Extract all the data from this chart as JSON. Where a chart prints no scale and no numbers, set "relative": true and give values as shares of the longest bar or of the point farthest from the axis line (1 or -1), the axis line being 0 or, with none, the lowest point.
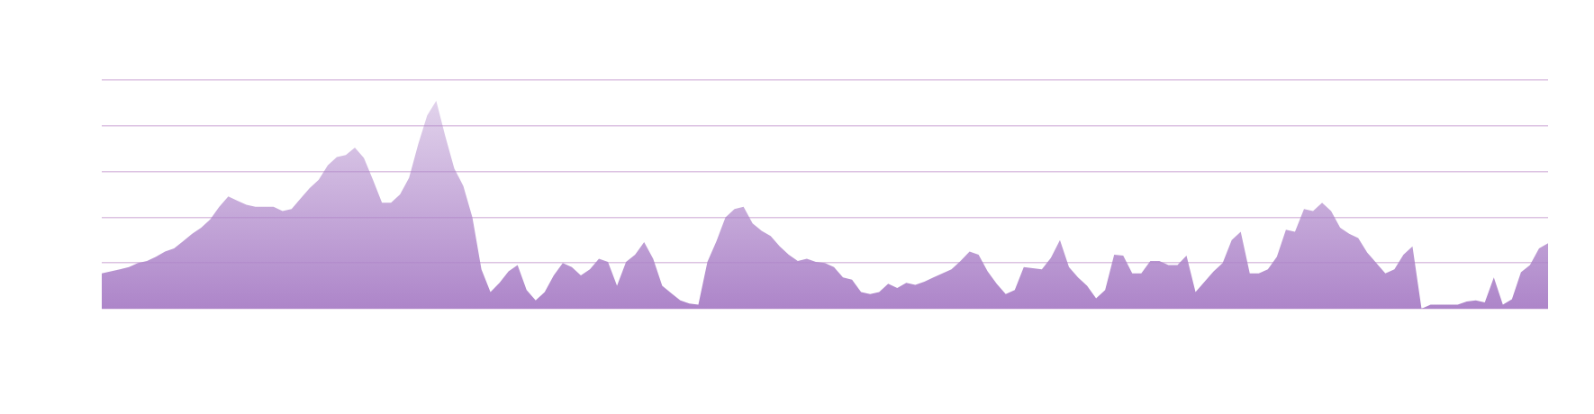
{
  "chart_data": {
    "type": "area",
    "relative": true,
    "grid": "y",
    "color": "#ad85c9",
    "categories": [
      null,
      null,
      null,
      null,
      null,
      null,
      null,
      null,
      null,
      null,
      null,
      null,
      null,
      null,
      null,
      null,
      null,
      null,
      null,
      null,
      null,
      null,
      null,
      null,
      null,
      null,
      null,
      null,
      null,
      null,
      null,
      null,
      null,
      null,
      null,
      null,
      null,
      null,
      null,
      null,
      null,
      null,
      null,
      null,
      null,
      null,
      null,
      null,
      null,
      null,
      null,
      null,
      null,
      null,
      null,
      null,
      null,
      null,
      null,
      null,
      null,
      null,
      null,
      null,
      null,
      null,
      null,
      null,
      null,
      null,
      null,
      null,
      null,
      null,
      null,
      null,
      null,
      null,
      null,
      null,
      null,
      null,
      null,
      null,
      null,
      null,
      null,
      null,
      null,
      null,
      null,
      null,
      null,
      null,
      null,
      null,
      null,
      null,
      null,
      null,
      null,
      null,
      null,
      null,
      null,
      null,
      null,
      null,
      null,
      null,
      null,
      null,
      null,
      null,
      null,
      null,
      null,
      null,
      null,
      null,
      null,
      null,
      null,
      null,
      null,
      null,
      null,
      null,
      null,
      null,
      null,
      null,
      null,
      null,
      null,
      null,
      null,
      null,
      null,
      null,
      null,
      null,
      null,
      null,
      null,
      null,
      null,
      null,
      null,
      null,
      null,
      null,
      null,
      null,
      null,
      null,
      null,
      null,
      null,
      null,
      null
    ],
    "values": [
      0.17,
      0.18,
      0.19,
      0.2,
      0.22,
      0.23,
      0.25,
      0.275,
      0.29,
      0.325,
      0.36,
      0.39,
      0.43,
      0.49,
      0.54,
      0.52,
      0.5,
      0.49,
      0.49,
      0.49,
      0.47,
      0.48,
      0.53,
      0.58,
      0.62,
      0.69,
      0.73,
      0.74,
      0.775,
      0.725,
      0.62,
      0.51,
      0.51,
      0.55,
      0.63,
      0.79,
      0.93,
      1.0,
      0.83,
      0.675,
      0.59,
      0.44,
      0.19,
      0.08,
      0.125,
      0.18,
      0.21,
      0.09,
      0.04,
      0.08,
      0.16,
      0.22,
      0.2,
      0.16,
      0.19,
      0.24,
      0.225,
      0.11,
      0.225,
      0.26,
      0.32,
      0.24,
      0.11,
      0.075,
      0.04,
      0.025,
      0.02,
      0.225,
      0.325,
      0.44,
      0.48,
      0.49,
      0.41,
      0.375,
      0.35,
      0.3,
      0.26,
      0.23,
      0.24,
      0.225,
      0.22,
      0.2,
      0.15,
      0.14,
      0.08,
      0.07,
      0.08,
      0.12,
      0.1,
      0.125,
      0.115,
      0.13,
      0.15,
      0.17,
      0.19,
      0.23,
      0.275,
      0.26,
      0.18,
      0.12,
      0.07,
      0.09,
      0.2,
      0.195,
      0.19,
      0.245,
      0.33,
      0.2,
      0.15,
      0.11,
      0.05,
      0.09,
      0.26,
      0.255,
      0.17,
      0.17,
      0.23,
      0.23,
      0.21,
      0.21,
      0.255,
      0.08,
      0.13,
      0.18,
      0.22,
      0.33,
      0.37,
      0.17,
      0.17,
      0.19,
      0.25,
      0.38,
      0.37,
      0.48,
      0.47,
      0.51,
      0.47,
      0.39,
      0.36,
      0.34,
      0.27,
      0.22,
      0.17,
      0.19,
      0.26,
      0.3,
      0,
      0.02,
      0.02,
      0.02,
      0.02,
      0.035,
      0.04,
      0.03,
      0.15,
      0.02,
      0.045,
      0.175,
      0.21,
      0.29,
      0.315
    ]
  }
}
